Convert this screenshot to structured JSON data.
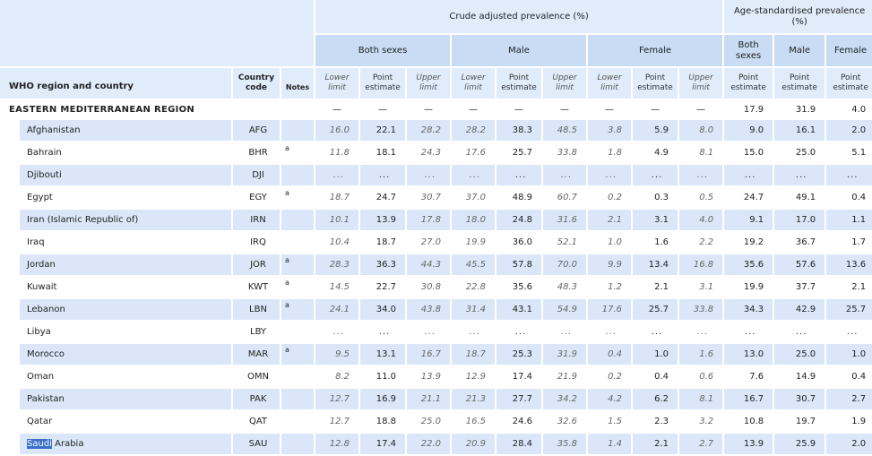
{
  "header": {
    "crude_group": "Crude adjusted prevalence (%)",
    "age_group": "Age-standardised prevalence (%)",
    "both_sexes": "Both sexes",
    "male": "Male",
    "female": "Female",
    "both_sexes_age": "Both sexes",
    "male_age": "Male",
    "female_age": "Female",
    "region_col": "WHO region and country",
    "code_col": "Country code",
    "notes_col": "Notes",
    "lower": "Lower limit",
    "point": "Point estimate",
    "upper": "Upper limit"
  },
  "region": {
    "name": "EASTERN MEDITERRANEAN REGION",
    "dash": "—",
    "age_both": "17.9",
    "age_male": "31.9",
    "age_female": "4.0"
  },
  "selection": {
    "highlighted_word": "Saudi",
    "rest": " Arabia"
  },
  "rows": [
    {
      "country": "Afghanistan",
      "code": "AFG",
      "note": "",
      "v": [
        "16.0",
        "22.1",
        "28.2",
        "28.2",
        "38.3",
        "48.5",
        "3.8",
        "5.9",
        "8.0",
        "9.0",
        "16.1",
        "2.0"
      ]
    },
    {
      "country": "Bahrain",
      "code": "BHR",
      "note": "a",
      "v": [
        "11.8",
        "18.1",
        "24.3",
        "17.6",
        "25.7",
        "33.8",
        "1.8",
        "4.9",
        "8.1",
        "15.0",
        "25.0",
        "5.1"
      ]
    },
    {
      "country": "Djibouti",
      "code": "DJI",
      "note": "",
      "v": [
        "...",
        "...",
        "...",
        "...",
        "...",
        "...",
        "...",
        "...",
        "...",
        "...",
        "...",
        "..."
      ]
    },
    {
      "country": "Egypt",
      "code": "EGY",
      "note": "a",
      "v": [
        "18.7",
        "24.7",
        "30.7",
        "37.0",
        "48.9",
        "60.7",
        "0.2",
        "0.3",
        "0.5",
        "24.7",
        "49.1",
        "0.4"
      ]
    },
    {
      "country": "Iran (Islamic Republic of)",
      "code": "IRN",
      "note": "",
      "v": [
        "10.1",
        "13.9",
        "17.8",
        "18.0",
        "24.8",
        "31.6",
        "2.1",
        "3.1",
        "4.0",
        "9.1",
        "17.0",
        "1.1"
      ]
    },
    {
      "country": "Iraq",
      "code": "IRQ",
      "note": "",
      "v": [
        "10.4",
        "18.7",
        "27.0",
        "19.9",
        "36.0",
        "52.1",
        "1.0",
        "1.6",
        "2.2",
        "19.2",
        "36.7",
        "1.7"
      ]
    },
    {
      "country": "Jordan",
      "code": "JOR",
      "note": "a",
      "v": [
        "28.3",
        "36.3",
        "44.3",
        "45.5",
        "57.8",
        "70.0",
        "9.9",
        "13.4",
        "16.8",
        "35.6",
        "57.6",
        "13.6"
      ]
    },
    {
      "country": "Kuwait",
      "code": "KWT",
      "note": "a",
      "v": [
        "14.5",
        "22.7",
        "30.8",
        "22.8",
        "35.6",
        "48.3",
        "1.2",
        "2.1",
        "3.1",
        "19.9",
        "37.7",
        "2.1"
      ]
    },
    {
      "country": "Lebanon",
      "code": "LBN",
      "note": "a",
      "v": [
        "24.1",
        "34.0",
        "43.8",
        "31.4",
        "43.1",
        "54.9",
        "17.6",
        "25.7",
        "33.8",
        "34.3",
        "42.9",
        "25.7"
      ]
    },
    {
      "country": "Libya",
      "code": "LBY",
      "note": "",
      "v": [
        "...",
        "...",
        "...",
        "...",
        "...",
        "...",
        "...",
        "...",
        "...",
        "...",
        "...",
        "..."
      ]
    },
    {
      "country": "Morocco",
      "code": "MAR",
      "note": "a",
      "v": [
        "9.5",
        "13.1",
        "16.7",
        "18.7",
        "25.3",
        "31.9",
        "0.4",
        "1.0",
        "1.6",
        "13.0",
        "25.0",
        "1.0"
      ]
    },
    {
      "country": "Oman",
      "code": "OMN",
      "note": "",
      "v": [
        "8.2",
        "11.0",
        "13.9",
        "12.9",
        "17.4",
        "21.9",
        "0.2",
        "0.4",
        "0.6",
        "7.6",
        "14.9",
        "0.4"
      ]
    },
    {
      "country": "Pakistan",
      "code": "PAK",
      "note": "",
      "v": [
        "12.7",
        "16.9",
        "21.1",
        "21.3",
        "27.7",
        "34.2",
        "4.2",
        "6.2",
        "8.1",
        "16.7",
        "30.7",
        "2.7"
      ]
    },
    {
      "country": "Qatar",
      "code": "QAT",
      "note": "",
      "v": [
        "12.7",
        "18.8",
        "25.0",
        "16.5",
        "24.6",
        "32.6",
        "1.5",
        "2.3",
        "3.2",
        "10.8",
        "19.7",
        "1.9"
      ]
    },
    {
      "country": "Saudi Arabia",
      "code": "SAU",
      "note": "",
      "v": [
        "12.8",
        "17.4",
        "22.0",
        "20.9",
        "28.4",
        "35.8",
        "1.4",
        "2.1",
        "2.7",
        "13.9",
        "25.9",
        "2.0"
      ]
    }
  ]
}
